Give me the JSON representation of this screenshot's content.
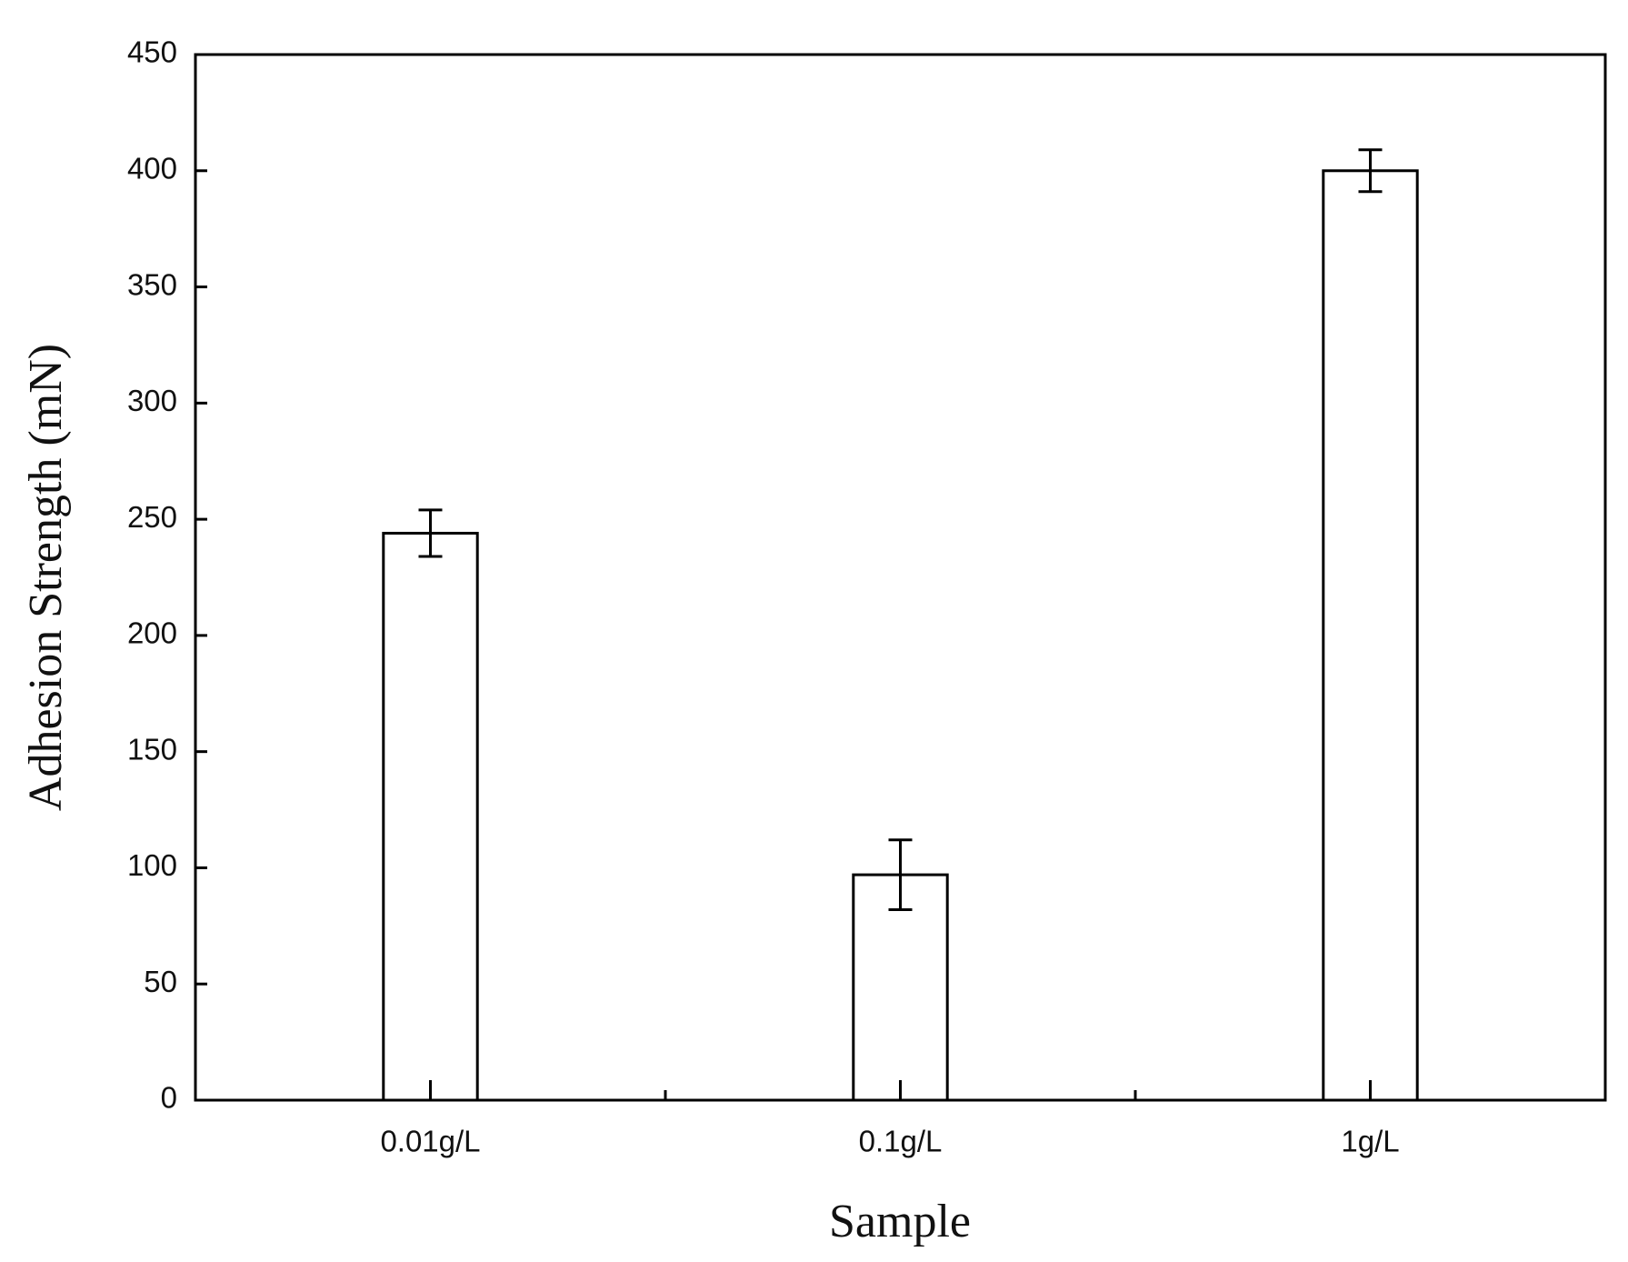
{
  "chart_data": {
    "type": "bar",
    "x_label": "Sample",
    "y_label": "Adhesion Strength (mN)",
    "categories": [
      "0.01g/L",
      "0.1g/L",
      "1g/L"
    ],
    "values": [
      244,
      97,
      400
    ],
    "errors": [
      10,
      15,
      9
    ],
    "color": "#ffffff",
    "edge_color": "#000000",
    "ylim": [
      0,
      450
    ],
    "yticks": [
      0,
      50,
      100,
      150,
      200,
      250,
      300,
      350,
      400,
      450
    ]
  }
}
